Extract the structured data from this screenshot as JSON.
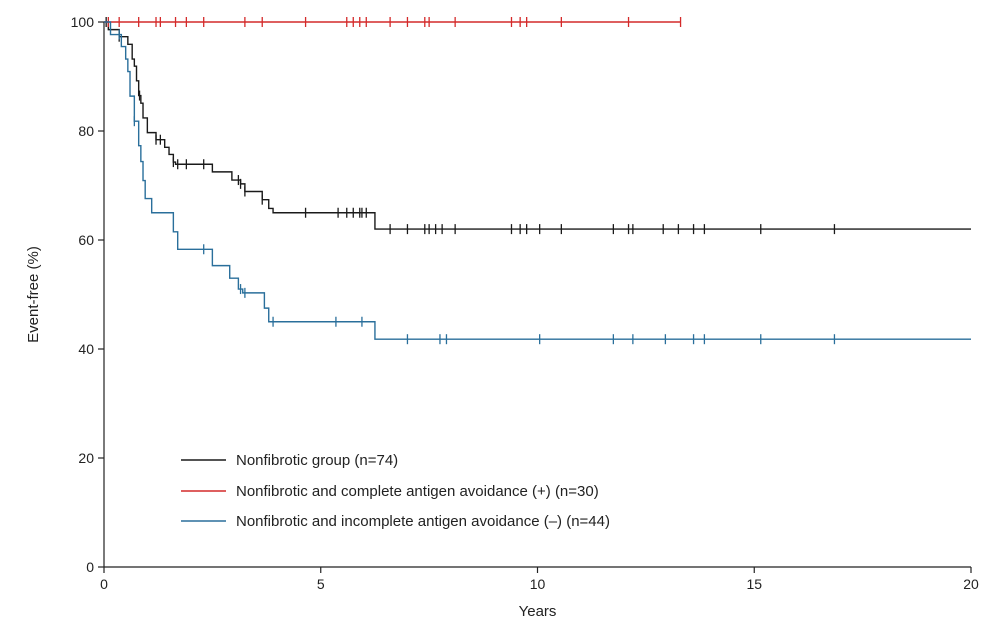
{
  "chart_data": {
    "type": "line",
    "title": "",
    "xlabel": "Years",
    "ylabel": "Event-free (%)",
    "xlim": [
      0,
      20
    ],
    "ylim": [
      0,
      100
    ],
    "xticks": [
      "0",
      "5",
      "10",
      "15",
      "20"
    ],
    "yticks": [
      "0",
      "20",
      "40",
      "60",
      "80",
      "100"
    ],
    "grid": false,
    "legend_position": "lower-left",
    "series": [
      {
        "name": "Nonfibrotic group (n=74)",
        "color": "#1a1a1a",
        "step_points": [
          [
            0,
            100
          ],
          [
            0.1,
            98.6
          ],
          [
            0.35,
            97.3
          ],
          [
            0.55,
            95.9
          ],
          [
            0.65,
            93.2
          ],
          [
            0.7,
            91.9
          ],
          [
            0.75,
            89.2
          ],
          [
            0.8,
            86.5
          ],
          [
            0.85,
            85.1
          ],
          [
            0.9,
            82.4
          ],
          [
            1.0,
            79.7
          ],
          [
            1.2,
            78.4
          ],
          [
            1.4,
            77.0
          ],
          [
            1.5,
            75.7
          ],
          [
            1.6,
            74.3
          ],
          [
            1.65,
            73.9
          ],
          [
            2.5,
            72.5
          ],
          [
            2.95,
            71.0
          ],
          [
            3.15,
            70.3
          ],
          [
            3.25,
            68.9
          ],
          [
            3.65,
            67.4
          ],
          [
            3.8,
            65.8
          ],
          [
            3.9,
            65.0
          ],
          [
            6.25,
            62.0
          ],
          [
            20,
            62.0
          ]
        ],
        "censored_x": [
          0.05,
          0.35,
          0.82,
          1.2,
          1.3,
          1.6,
          1.7,
          1.9,
          2.3,
          3.1,
          3.15,
          3.25,
          3.65,
          4.65,
          5.4,
          5.6,
          5.75,
          5.9,
          5.95,
          6.05,
          6.6,
          7.0,
          7.4,
          7.5,
          7.65,
          7.8,
          8.1,
          9.4,
          9.6,
          9.75,
          10.05,
          10.55,
          11.75,
          12.1,
          12.2,
          12.9,
          13.25,
          13.6,
          13.85,
          15.15,
          16.85
        ]
      },
      {
        "name": "Nonfibrotic and complete antigen avoidance (+) (n=30)",
        "color": "#d42a2a",
        "step_points": [
          [
            0,
            100
          ],
          [
            13.3,
            100
          ]
        ],
        "censored_x": [
          0.1,
          0.35,
          0.8,
          1.2,
          1.3,
          1.65,
          1.9,
          2.3,
          3.25,
          3.65,
          4.65,
          5.6,
          5.75,
          5.9,
          6.05,
          6.6,
          7.0,
          7.4,
          7.5,
          8.1,
          9.4,
          9.6,
          9.75,
          10.55,
          12.1,
          13.3
        ]
      },
      {
        "name": "Nonfibrotic and incomplete antigen avoidance (–) (n=44)",
        "color": "#2a6f9b",
        "step_points": [
          [
            0,
            100
          ],
          [
            0.15,
            97.7
          ],
          [
            0.4,
            95.5
          ],
          [
            0.5,
            93.2
          ],
          [
            0.55,
            90.9
          ],
          [
            0.6,
            86.4
          ],
          [
            0.7,
            81.8
          ],
          [
            0.8,
            77.3
          ],
          [
            0.85,
            74.4
          ],
          [
            0.9,
            70.9
          ],
          [
            0.95,
            67.6
          ],
          [
            1.1,
            65.0
          ],
          [
            1.6,
            61.5
          ],
          [
            1.7,
            58.3
          ],
          [
            2.5,
            55.3
          ],
          [
            2.9,
            53.0
          ],
          [
            3.1,
            51.0
          ],
          [
            3.2,
            50.3
          ],
          [
            3.7,
            47.5
          ],
          [
            3.8,
            45.0
          ],
          [
            6.25,
            41.8
          ],
          [
            20,
            41.8
          ]
        ],
        "censored_x": [
          0.35,
          0.7,
          2.3,
          3.15,
          3.25,
          3.9,
          5.35,
          5.95,
          7.0,
          7.75,
          7.9,
          10.05,
          11.75,
          12.2,
          12.95,
          13.6,
          13.85,
          15.15,
          16.85
        ]
      }
    ]
  }
}
